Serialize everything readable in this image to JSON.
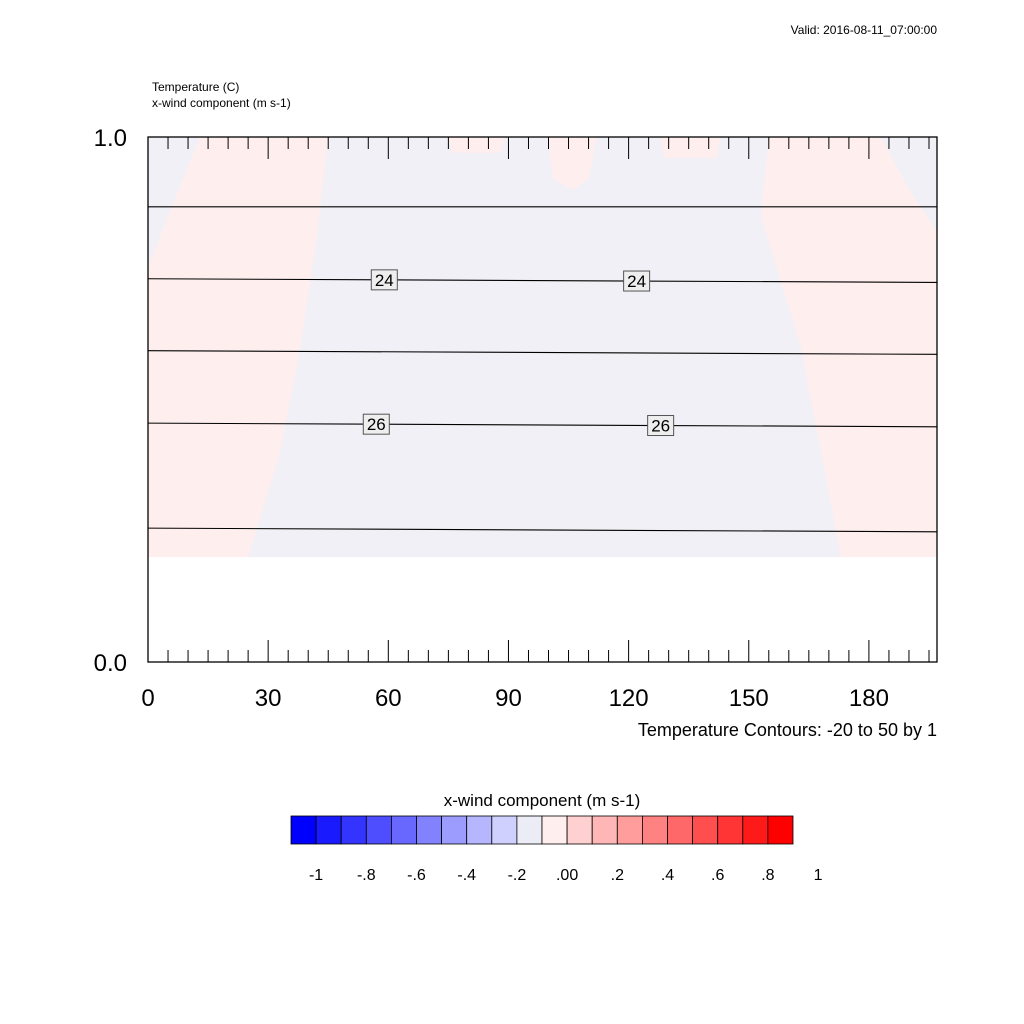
{
  "header": {
    "valid_time": "Valid: 2016-08-11_07:00:00",
    "field_line_1": "Temperature   (C)",
    "field_line_2": "x-wind component   (m s-1)",
    "contour_info": "Temperature Contours: -20 to 50 by 1"
  },
  "chart_data": {
    "type": "heatmap",
    "title": "",
    "xlabel": "",
    "ylabel": "",
    "xlim": [
      0,
      197
    ],
    "ylim": [
      0.0,
      1.0
    ],
    "x_ticks": [
      0,
      30,
      60,
      90,
      120,
      150,
      180
    ],
    "x_tick_labels": [
      "0",
      "30",
      "60",
      "90",
      "120",
      "150",
      "180"
    ],
    "y_ticks": [
      0.0,
      1.0
    ],
    "y_tick_labels": [
      "0.0",
      "1.0"
    ],
    "grid": false,
    "filled_field": {
      "name": "x-wind component",
      "data_bottom": 0.2,
      "data_top": 1.0,
      "regions": [
        {
          "value": 0.0,
          "color": "#ffeeee",
          "polygon": [
            [
              0,
              0.2
            ],
            [
              0,
              0.75
            ],
            [
              5,
              0.85
            ],
            [
              13,
              1.0
            ],
            [
              45,
              1.0
            ],
            [
              42,
              0.8
            ],
            [
              38,
              0.6
            ],
            [
              33,
              0.4
            ],
            [
              25,
              0.2
            ]
          ]
        },
        {
          "value": 0.0,
          "color": "#ffeeee",
          "polygon": [
            [
              155,
              1.0
            ],
            [
              153,
              0.85
            ],
            [
              163,
              0.6
            ],
            [
              168,
              0.4
            ],
            [
              173,
              0.2
            ],
            [
              197,
              0.2
            ],
            [
              197,
              0.82
            ],
            [
              190,
              0.9
            ],
            [
              183,
              1.0
            ]
          ]
        },
        {
          "value": 0.0,
          "color": "#ffeeee",
          "polygon": [
            [
              75,
              1.0
            ],
            [
              76,
              0.97
            ],
            [
              88,
              0.97
            ],
            [
              89,
              1.0
            ]
          ]
        },
        {
          "value": 0.0,
          "color": "#ffeeee",
          "polygon": [
            [
              100,
              1.0
            ],
            [
              101,
              0.92
            ],
            [
              106,
              0.9
            ],
            [
              110,
              0.92
            ],
            [
              112,
              1.0
            ]
          ]
        },
        {
          "value": 0.0,
          "color": "#ffeeee",
          "polygon": [
            [
              128,
              1.0
            ],
            [
              129,
              0.96
            ],
            [
              142,
              0.96
            ],
            [
              143,
              1.0
            ]
          ]
        }
      ],
      "background_value": -0.1,
      "background_color": "#f0f0f6"
    },
    "contours": {
      "name": "Temperature",
      "lines": [
        {
          "level": 23,
          "y_left": 0.867,
          "y_right": 0.867,
          "label": ""
        },
        {
          "level": 24,
          "y_left": 0.73,
          "y_right": 0.723,
          "label": "24",
          "label_x": [
            59,
            122
          ]
        },
        {
          "level": 25,
          "y_left": 0.593,
          "y_right": 0.586,
          "label": ""
        },
        {
          "level": 26,
          "y_left": 0.455,
          "y_right": 0.448,
          "label": "26",
          "label_x": [
            57,
            128
          ]
        },
        {
          "level": 27,
          "y_left": 0.255,
          "y_right": 0.248,
          "label": ""
        }
      ]
    },
    "colorbar": {
      "title": "x-wind component  (m s-1)",
      "colors": [
        "#0000ff",
        "#1a1aff",
        "#3434ff",
        "#4e4eff",
        "#6868ff",
        "#8282ff",
        "#9c9cff",
        "#b6b6ff",
        "#d0d0ff",
        "#ececf6",
        "#ffeeee",
        "#ffd0d0",
        "#ffb6b6",
        "#ff9c9c",
        "#ff8282",
        "#ff6868",
        "#ff4e4e",
        "#ff3434",
        "#ff1a1a",
        "#ff0000"
      ],
      "labels": [
        "-1",
        "-.8",
        "-.6",
        "-.4",
        "-.2",
        ".00",
        ".2",
        ".4",
        ".6",
        ".8",
        "1"
      ]
    }
  }
}
